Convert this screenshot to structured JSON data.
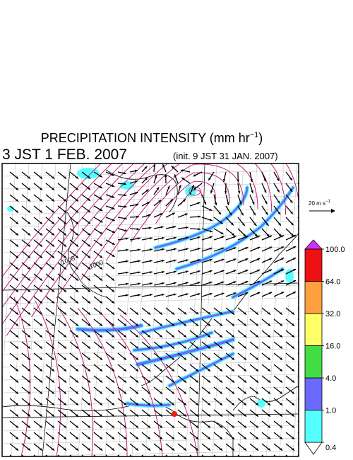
{
  "header": {
    "title": "PRECIPITATION INTENSITY (mm hr",
    "title_exponent": "−1",
    "title_close": ")",
    "valid_time": "3 JST 1 FEB. 2007",
    "init_time": "(init. 9 JST 31 JAN. 2007)"
  },
  "map": {
    "isobar_labels": [
      "1005",
      "1000"
    ]
  },
  "reference_vector": {
    "label": "20 m s",
    "label_exponent": "−1"
  },
  "colorbar": {
    "levels": [
      {
        "value": 0.4,
        "label": "0.4"
      },
      {
        "value": 1,
        "label": "1.0"
      },
      {
        "value": 4,
        "label": "4.0"
      },
      {
        "value": 16,
        "label": "16.0"
      },
      {
        "value": 32,
        "label": "32.0"
      },
      {
        "value": 64,
        "label": "64.0"
      },
      {
        "value": 100,
        "label": "100.0"
      }
    ],
    "colors": [
      "#55ffff",
      "#6a6aff",
      "#44dd44",
      "#ffff66",
      "#ffa040",
      "#ee1111"
    ],
    "over_color": "#cc33ff",
    "under_color": "#ffffff"
  }
}
